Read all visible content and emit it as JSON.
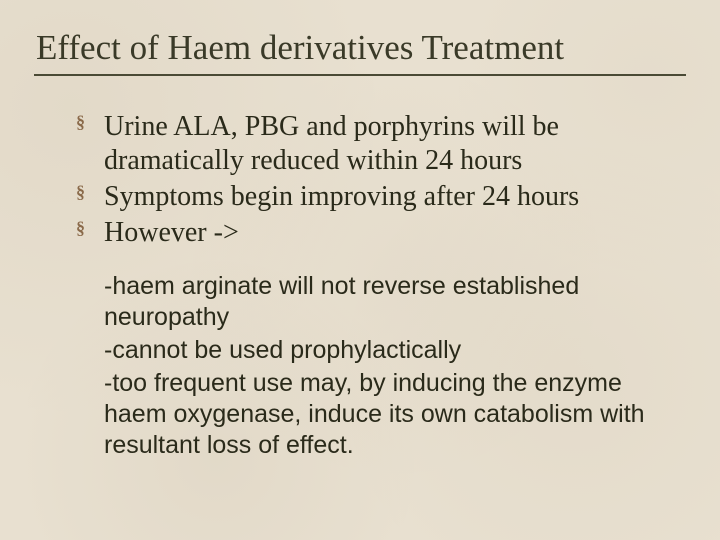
{
  "background_color": "#e8e0d0",
  "text_color": "#2a2a1a",
  "title": {
    "text": "Effect of Haem derivatives Treatment",
    "fontsize": 35,
    "color": "#3a3a28",
    "underline_color": "#4a4a35"
  },
  "bullets": {
    "marker": "§",
    "marker_color": "#8a6a4a",
    "fontsize": 28,
    "items": [
      "Urine ALA, PBG and porphyrins will be dramatically reduced within 24 hours",
      "Symptoms begin improving after 24 hours",
      "However ->"
    ]
  },
  "sublist": {
    "fontsize": 25,
    "items": [
      "-haem arginate will not reverse established neuropathy",
      "-cannot be used prophylactically",
      "-too frequent use may, by inducing the enzyme haem oxygenase, induce its own catabolism with resultant loss of effect."
    ]
  }
}
